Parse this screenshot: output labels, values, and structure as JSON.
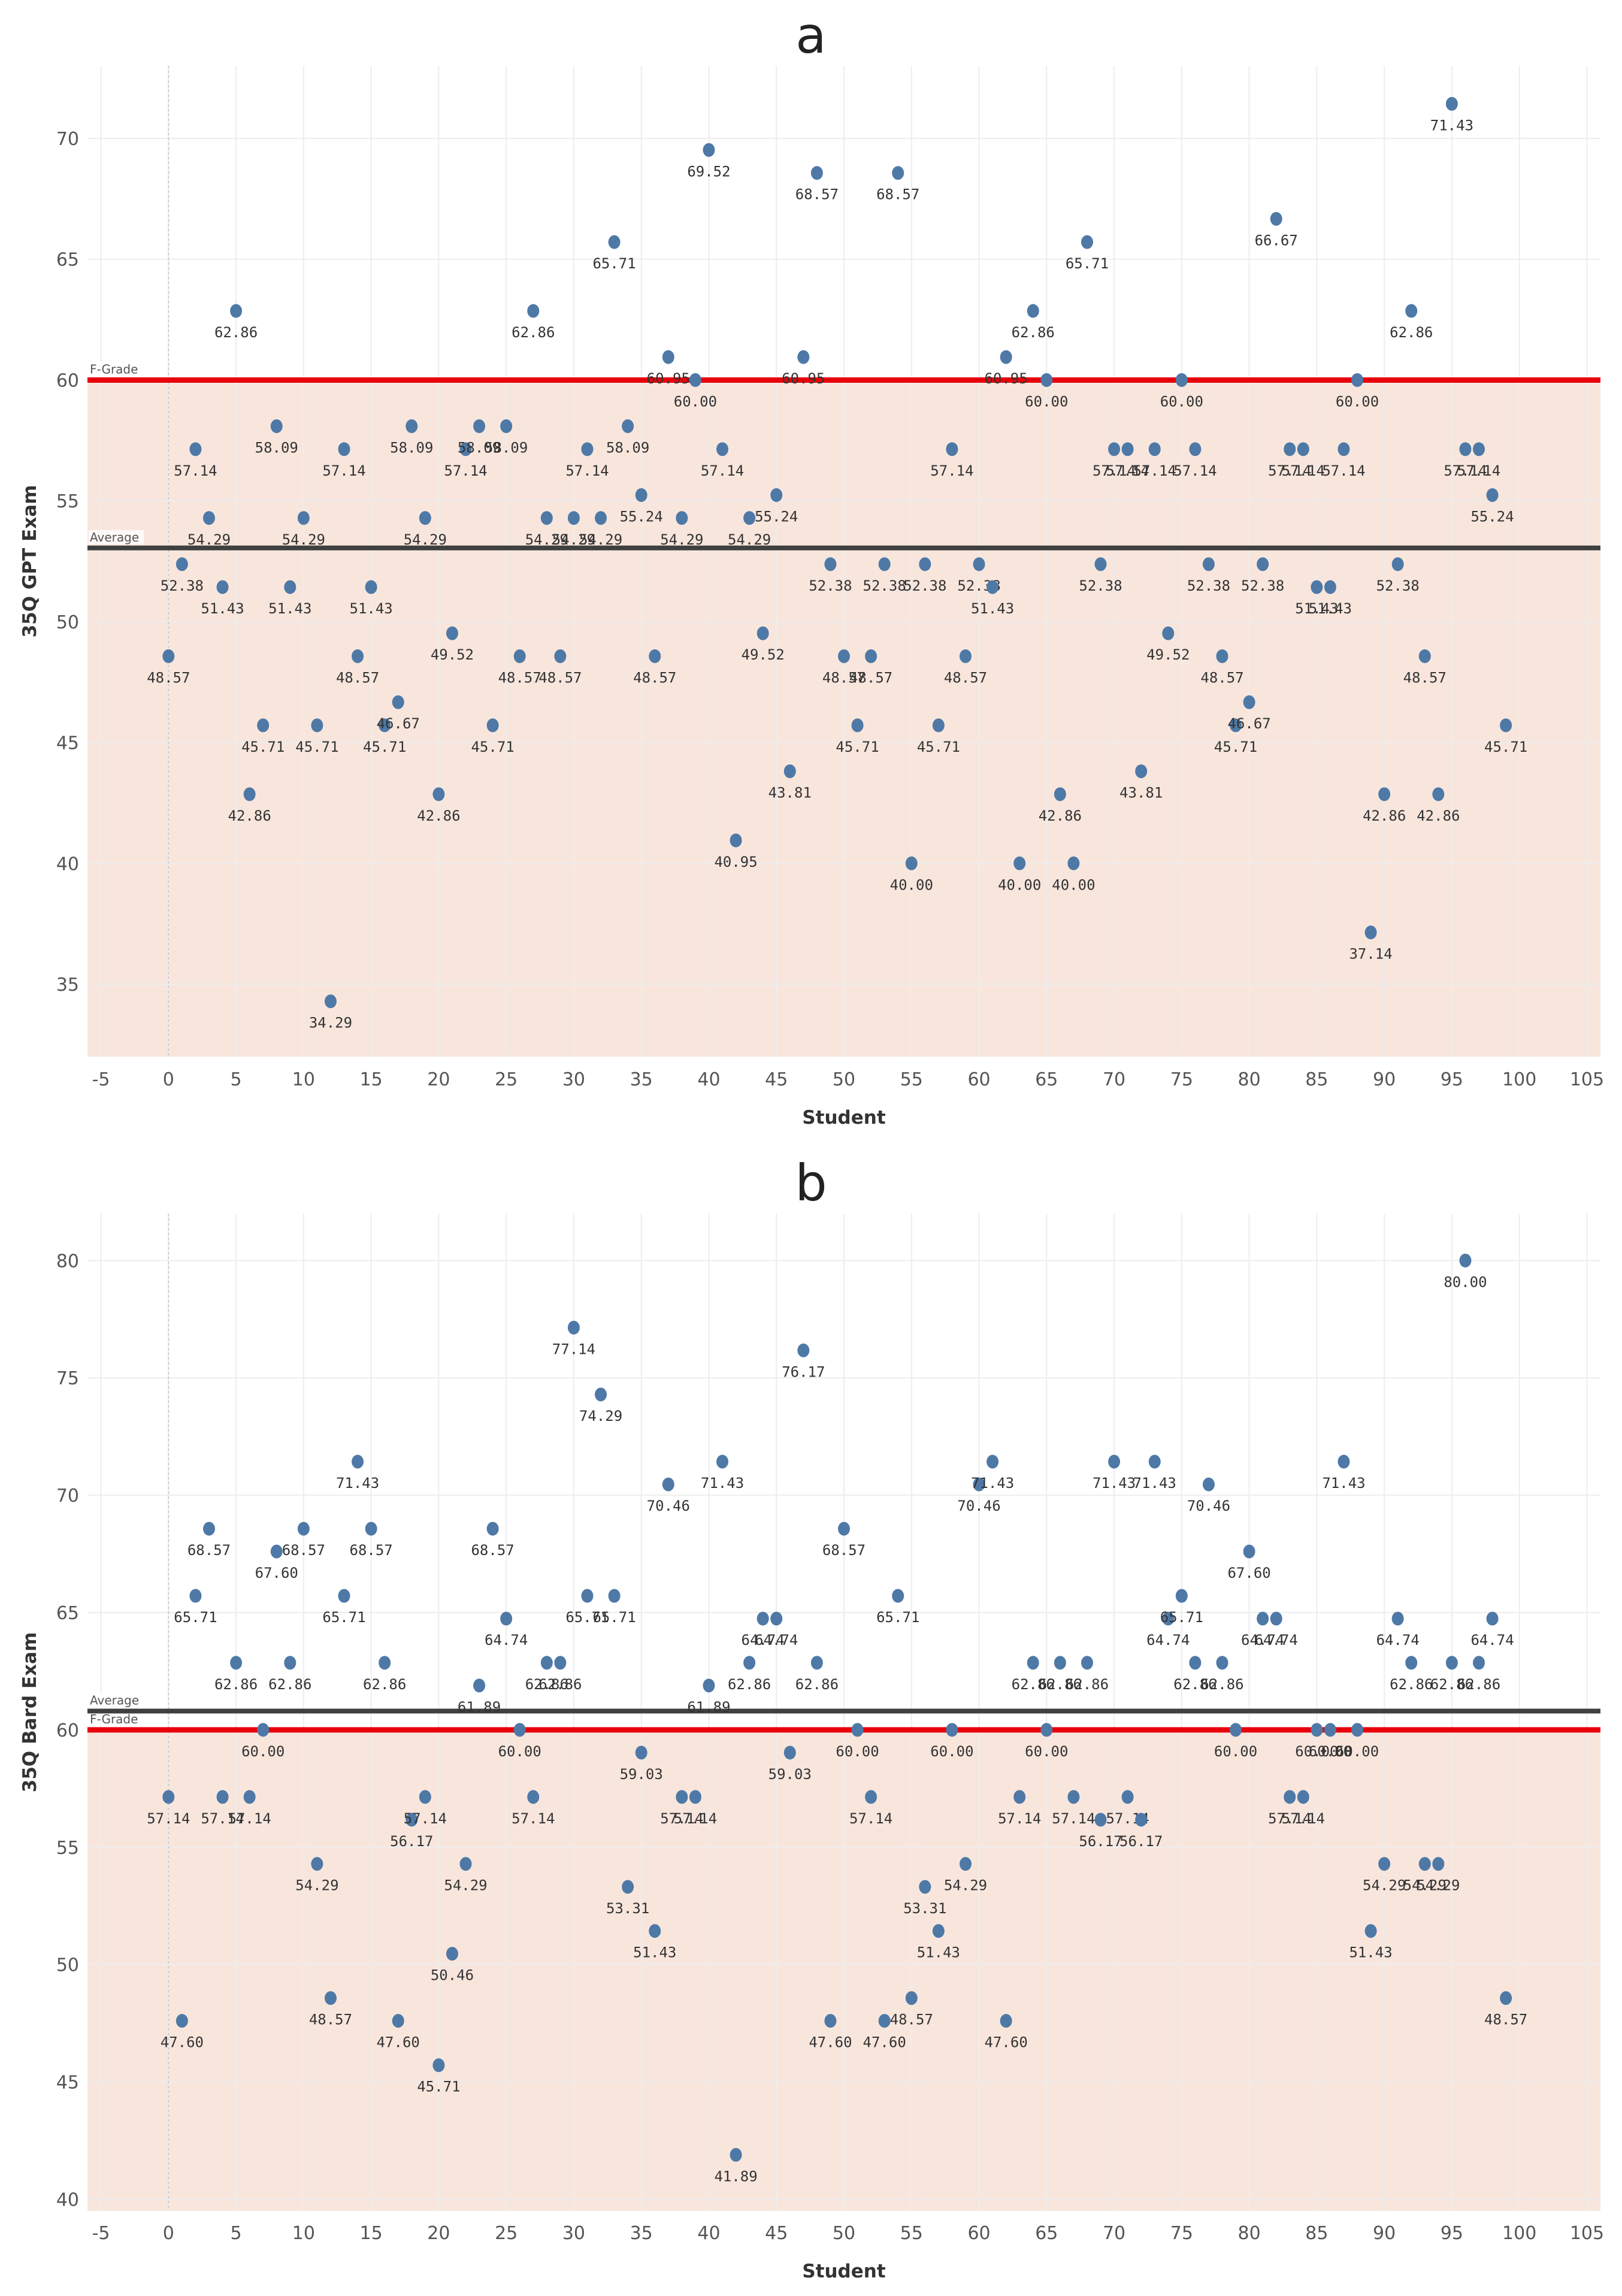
{
  "colors": {
    "point": "#4e79a7",
    "fgrade": "#e8000b",
    "average": "#404040",
    "band": "#f8e6dd",
    "grid": "#ededed"
  },
  "chart_data": [
    {
      "type": "scatter",
      "panel": "a",
      "xlabel": "Student",
      "ylabel": "35Q GPT Exam",
      "xlim": [
        -6,
        106
      ],
      "ylim": [
        32,
        73
      ],
      "xticks": [
        -5,
        0,
        5,
        10,
        15,
        20,
        25,
        30,
        35,
        40,
        45,
        50,
        55,
        60,
        65,
        70,
        75,
        80,
        85,
        90,
        95,
        100,
        105
      ],
      "yticks": [
        35,
        40,
        45,
        50,
        55,
        60,
        65,
        70
      ],
      "reference_lines": [
        {
          "name": "F-Grade",
          "value": 60
        },
        {
          "name": "Average",
          "value": 53.05
        }
      ],
      "grid": true,
      "points": [
        {
          "x": 0,
          "y": 48.57
        },
        {
          "x": 1,
          "y": 52.38
        },
        {
          "x": 2,
          "y": 57.14
        },
        {
          "x": 3,
          "y": 54.29
        },
        {
          "x": 4,
          "y": 51.43
        },
        {
          "x": 5,
          "y": 62.86
        },
        {
          "x": 6,
          "y": 42.86
        },
        {
          "x": 7,
          "y": 45.71
        },
        {
          "x": 8,
          "y": 58.09
        },
        {
          "x": 9,
          "y": 51.43
        },
        {
          "x": 10,
          "y": 54.29
        },
        {
          "x": 11,
          "y": 45.71
        },
        {
          "x": 12,
          "y": 34.29
        },
        {
          "x": 13,
          "y": 57.14
        },
        {
          "x": 14,
          "y": 48.57
        },
        {
          "x": 15,
          "y": 51.43
        },
        {
          "x": 16,
          "y": 45.71
        },
        {
          "x": 17,
          "y": 46.67
        },
        {
          "x": 18,
          "y": 58.09
        },
        {
          "x": 19,
          "y": 54.29
        },
        {
          "x": 20,
          "y": 42.86
        },
        {
          "x": 21,
          "y": 49.52
        },
        {
          "x": 22,
          "y": 57.14
        },
        {
          "x": 23,
          "y": 58.09
        },
        {
          "x": 24,
          "y": 45.71
        },
        {
          "x": 25,
          "y": 58.09
        },
        {
          "x": 26,
          "y": 48.57
        },
        {
          "x": 27,
          "y": 62.86
        },
        {
          "x": 28,
          "y": 54.29
        },
        {
          "x": 29,
          "y": 48.57
        },
        {
          "x": 30,
          "y": 54.29
        },
        {
          "x": 31,
          "y": 57.14
        },
        {
          "x": 32,
          "y": 54.29
        },
        {
          "x": 33,
          "y": 65.71
        },
        {
          "x": 34,
          "y": 58.09
        },
        {
          "x": 35,
          "y": 55.24
        },
        {
          "x": 36,
          "y": 48.57
        },
        {
          "x": 37,
          "y": 60.95
        },
        {
          "x": 38,
          "y": 54.29
        },
        {
          "x": 39,
          "y": 60.0
        },
        {
          "x": 40,
          "y": 69.52
        },
        {
          "x": 41,
          "y": 57.14
        },
        {
          "x": 42,
          "y": 40.95
        },
        {
          "x": 43,
          "y": 54.29
        },
        {
          "x": 44,
          "y": 49.52
        },
        {
          "x": 45,
          "y": 55.24
        },
        {
          "x": 46,
          "y": 43.81
        },
        {
          "x": 47,
          "y": 60.95
        },
        {
          "x": 48,
          "y": 68.57
        },
        {
          "x": 49,
          "y": 52.38
        },
        {
          "x": 50,
          "y": 48.57
        },
        {
          "x": 51,
          "y": 45.71
        },
        {
          "x": 52,
          "y": 48.57
        },
        {
          "x": 53,
          "y": 52.38
        },
        {
          "x": 54,
          "y": 68.57
        },
        {
          "x": 55,
          "y": 40.0
        },
        {
          "x": 56,
          "y": 52.38
        },
        {
          "x": 57,
          "y": 45.71
        },
        {
          "x": 58,
          "y": 57.14
        },
        {
          "x": 59,
          "y": 48.57
        },
        {
          "x": 60,
          "y": 52.38
        },
        {
          "x": 61,
          "y": 51.43
        },
        {
          "x": 62,
          "y": 60.95
        },
        {
          "x": 63,
          "y": 40.0
        },
        {
          "x": 64,
          "y": 62.86
        },
        {
          "x": 65,
          "y": 60.0
        },
        {
          "x": 66,
          "y": 42.86
        },
        {
          "x": 67,
          "y": 40.0
        },
        {
          "x": 68,
          "y": 65.71
        },
        {
          "x": 69,
          "y": 52.38
        },
        {
          "x": 70,
          "y": 57.14
        },
        {
          "x": 71,
          "y": 57.14
        },
        {
          "x": 72,
          "y": 43.81
        },
        {
          "x": 73,
          "y": 57.14
        },
        {
          "x": 74,
          "y": 49.52
        },
        {
          "x": 75,
          "y": 60.0
        },
        {
          "x": 76,
          "y": 57.14
        },
        {
          "x": 77,
          "y": 52.38
        },
        {
          "x": 78,
          "y": 48.57
        },
        {
          "x": 79,
          "y": 45.71
        },
        {
          "x": 80,
          "y": 46.67
        },
        {
          "x": 81,
          "y": 52.38
        },
        {
          "x": 82,
          "y": 66.67
        },
        {
          "x": 83,
          "y": 57.14
        },
        {
          "x": 84,
          "y": 57.14
        },
        {
          "x": 85,
          "y": 51.43
        },
        {
          "x": 86,
          "y": 51.43
        },
        {
          "x": 87,
          "y": 57.14
        },
        {
          "x": 88,
          "y": 60.0
        },
        {
          "x": 89,
          "y": 37.14
        },
        {
          "x": 90,
          "y": 42.86
        },
        {
          "x": 91,
          "y": 52.38
        },
        {
          "x": 92,
          "y": 62.86
        },
        {
          "x": 93,
          "y": 48.57
        },
        {
          "x": 94,
          "y": 42.86
        },
        {
          "x": 95,
          "y": 71.43
        },
        {
          "x": 96,
          "y": 57.14
        },
        {
          "x": 97,
          "y": 57.14
        },
        {
          "x": 98,
          "y": 55.24
        },
        {
          "x": 99,
          "y": 45.71
        }
      ]
    },
    {
      "type": "scatter",
      "panel": "b",
      "xlabel": "Student",
      "ylabel": "35Q Bard Exam",
      "xlim": [
        -6,
        106
      ],
      "ylim": [
        39.5,
        82
      ],
      "xticks": [
        -5,
        0,
        5,
        10,
        15,
        20,
        25,
        30,
        35,
        40,
        45,
        50,
        55,
        60,
        65,
        70,
        75,
        80,
        85,
        90,
        95,
        100,
        105
      ],
      "yticks": [
        40,
        45,
        50,
        55,
        60,
        65,
        70,
        75,
        80
      ],
      "reference_lines": [
        {
          "name": "F-Grade",
          "value": 60
        },
        {
          "name": "Average",
          "value": 60.8
        }
      ],
      "grid": true,
      "points": [
        {
          "x": 0,
          "y": 57.14
        },
        {
          "x": 1,
          "y": 47.6
        },
        {
          "x": 2,
          "y": 65.71
        },
        {
          "x": 3,
          "y": 68.57
        },
        {
          "x": 4,
          "y": 57.14
        },
        {
          "x": 5,
          "y": 62.86
        },
        {
          "x": 6,
          "y": 57.14
        },
        {
          "x": 7,
          "y": 60.0
        },
        {
          "x": 8,
          "y": 67.6
        },
        {
          "x": 9,
          "y": 62.86
        },
        {
          "x": 10,
          "y": 68.57
        },
        {
          "x": 11,
          "y": 54.29
        },
        {
          "x": 12,
          "y": 48.57
        },
        {
          "x": 13,
          "y": 65.71
        },
        {
          "x": 14,
          "y": 71.43
        },
        {
          "x": 15,
          "y": 68.57
        },
        {
          "x": 16,
          "y": 62.86
        },
        {
          "x": 17,
          "y": 47.6
        },
        {
          "x": 18,
          "y": 56.17
        },
        {
          "x": 19,
          "y": 57.14
        },
        {
          "x": 20,
          "y": 45.71
        },
        {
          "x": 21,
          "y": 50.46
        },
        {
          "x": 22,
          "y": 54.29
        },
        {
          "x": 23,
          "y": 61.89
        },
        {
          "x": 24,
          "y": 68.57
        },
        {
          "x": 25,
          "y": 64.74
        },
        {
          "x": 26,
          "y": 60.0
        },
        {
          "x": 27,
          "y": 57.14
        },
        {
          "x": 28,
          "y": 62.86
        },
        {
          "x": 29,
          "y": 62.86
        },
        {
          "x": 30,
          "y": 77.14
        },
        {
          "x": 31,
          "y": 65.71
        },
        {
          "x": 32,
          "y": 74.29
        },
        {
          "x": 33,
          "y": 65.71
        },
        {
          "x": 34,
          "y": 53.31
        },
        {
          "x": 35,
          "y": 59.03
        },
        {
          "x": 36,
          "y": 51.43
        },
        {
          "x": 37,
          "y": 70.46
        },
        {
          "x": 38,
          "y": 57.14
        },
        {
          "x": 39,
          "y": 57.14
        },
        {
          "x": 40,
          "y": 61.89
        },
        {
          "x": 41,
          "y": 71.43
        },
        {
          "x": 42,
          "y": 41.89
        },
        {
          "x": 43,
          "y": 62.86
        },
        {
          "x": 44,
          "y": 64.74
        },
        {
          "x": 45,
          "y": 64.74
        },
        {
          "x": 46,
          "y": 59.03
        },
        {
          "x": 47,
          "y": 76.17
        },
        {
          "x": 48,
          "y": 62.86
        },
        {
          "x": 49,
          "y": 47.6
        },
        {
          "x": 50,
          "y": 68.57
        },
        {
          "x": 51,
          "y": 60.0
        },
        {
          "x": 52,
          "y": 57.14
        },
        {
          "x": 53,
          "y": 47.6
        },
        {
          "x": 54,
          "y": 65.71
        },
        {
          "x": 55,
          "y": 48.57
        },
        {
          "x": 56,
          "y": 53.31
        },
        {
          "x": 57,
          "y": 51.43
        },
        {
          "x": 58,
          "y": 60.0
        },
        {
          "x": 59,
          "y": 54.29
        },
        {
          "x": 60,
          "y": 70.46
        },
        {
          "x": 61,
          "y": 71.43
        },
        {
          "x": 62,
          "y": 47.6
        },
        {
          "x": 63,
          "y": 57.14
        },
        {
          "x": 64,
          "y": 62.86
        },
        {
          "x": 65,
          "y": 60.0
        },
        {
          "x": 66,
          "y": 62.86
        },
        {
          "x": 67,
          "y": 57.14
        },
        {
          "x": 68,
          "y": 62.86
        },
        {
          "x": 69,
          "y": 56.17
        },
        {
          "x": 70,
          "y": 71.43
        },
        {
          "x": 71,
          "y": 57.14
        },
        {
          "x": 72,
          "y": 56.17
        },
        {
          "x": 73,
          "y": 71.43
        },
        {
          "x": 74,
          "y": 64.74
        },
        {
          "x": 75,
          "y": 65.71
        },
        {
          "x": 76,
          "y": 62.86
        },
        {
          "x": 77,
          "y": 70.46
        },
        {
          "x": 78,
          "y": 62.86
        },
        {
          "x": 79,
          "y": 60.0
        },
        {
          "x": 80,
          "y": 67.6
        },
        {
          "x": 81,
          "y": 64.74
        },
        {
          "x": 82,
          "y": 64.74
        },
        {
          "x": 83,
          "y": 57.14
        },
        {
          "x": 84,
          "y": 57.14
        },
        {
          "x": 85,
          "y": 60.0
        },
        {
          "x": 86,
          "y": 60.0
        },
        {
          "x": 87,
          "y": 71.43
        },
        {
          "x": 88,
          "y": 60.0
        },
        {
          "x": 89,
          "y": 51.43
        },
        {
          "x": 90,
          "y": 54.29
        },
        {
          "x": 91,
          "y": 64.74
        },
        {
          "x": 92,
          "y": 62.86
        },
        {
          "x": 93,
          "y": 54.29
        },
        {
          "x": 94,
          "y": 54.29
        },
        {
          "x": 95,
          "y": 62.86
        },
        {
          "x": 96,
          "y": 80.0
        },
        {
          "x": 97,
          "y": 62.86
        },
        {
          "x": 98,
          "y": 64.74
        },
        {
          "x": 99,
          "y": 48.57
        }
      ]
    }
  ]
}
